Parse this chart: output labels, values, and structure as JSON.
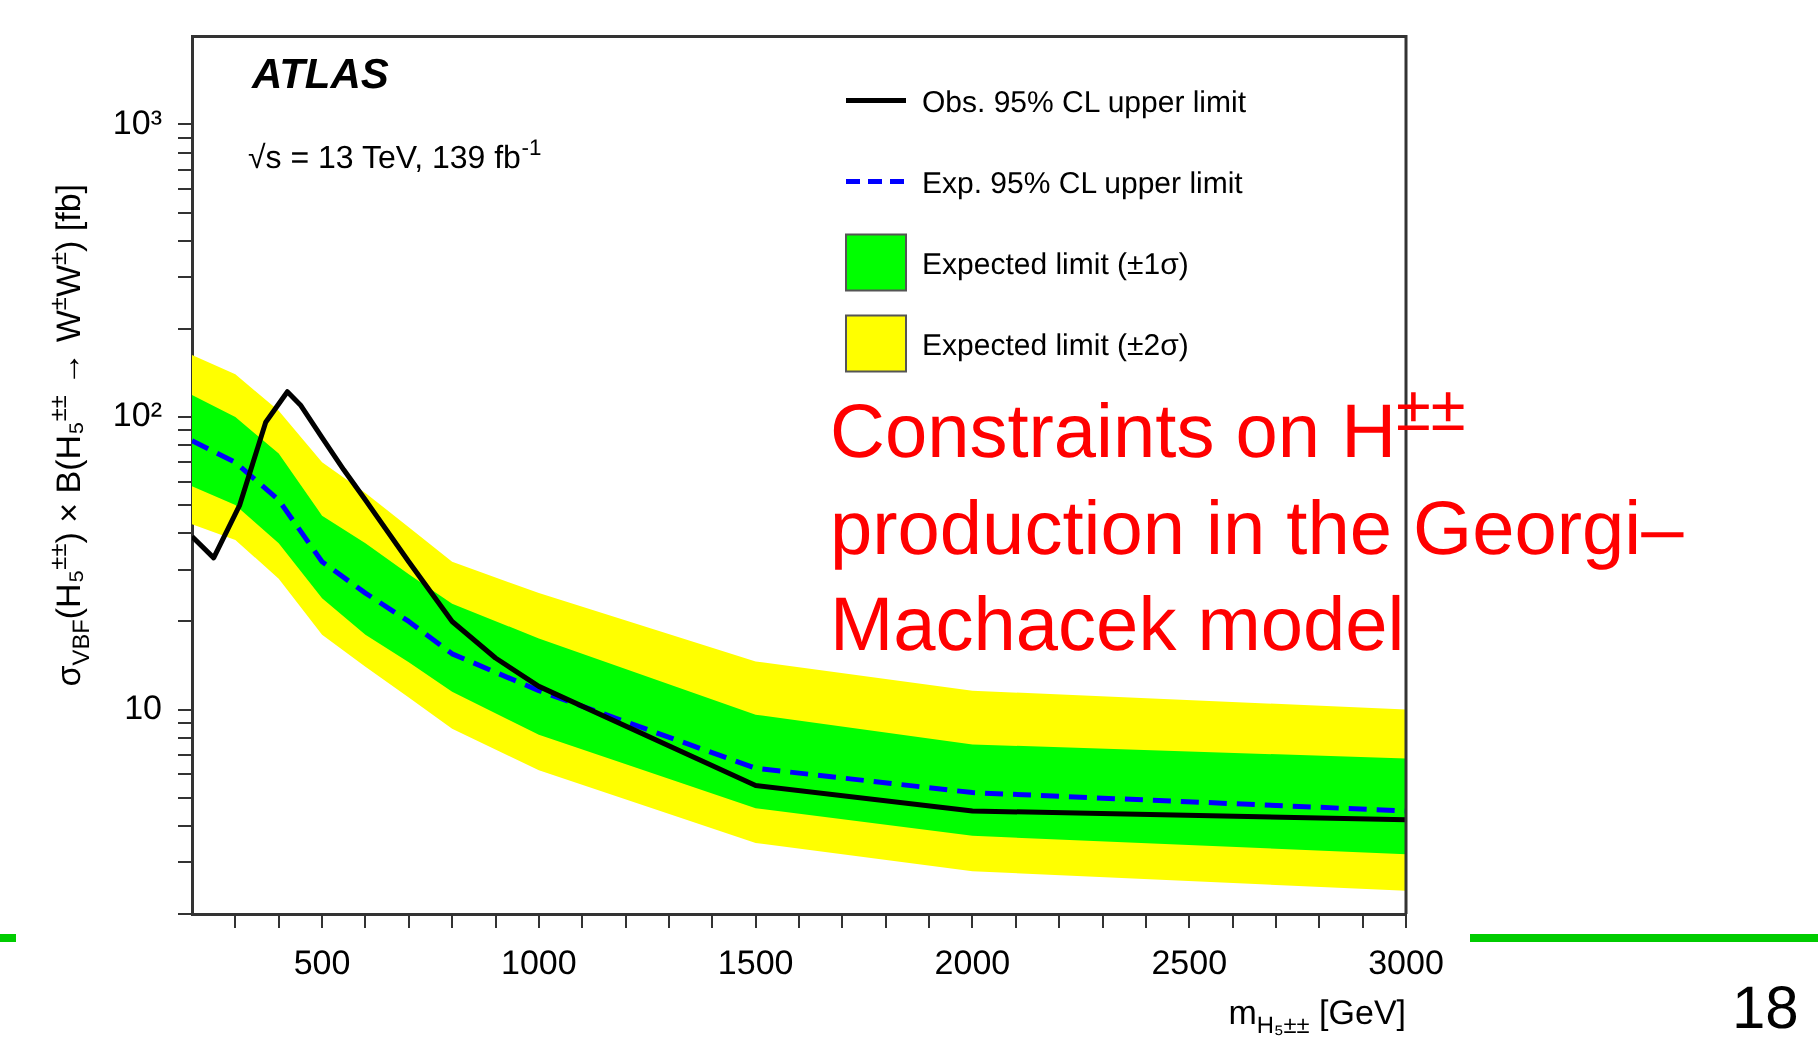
{
  "chart_data": {
    "type": "line",
    "xlabel": "m$_{H₅±±}$ [GeV]",
    "ylabel": "σ$_{VBF}$(H₅$^{±±}$) × B(H₅$^{±±}$ → W$^{±}$W$^{±}$) [fb]",
    "log": "y",
    "grid": false,
    "legend": "top right",
    "marker": "none",
    "xlim": [
      200,
      3000
    ],
    "ylim": [
      2,
      2000
    ],
    "xticks": [
      {
        "value": 300,
        "label": null
      },
      {
        "value": 400,
        "label": null
      },
      500,
      {
        "value": 600,
        "label": null
      },
      {
        "value": 700,
        "label": null
      },
      {
        "value": 800,
        "label": null
      },
      {
        "value": 900,
        "label": null
      },
      1000,
      {
        "value": 1100,
        "label": null
      },
      {
        "value": 1200,
        "label": null
      },
      {
        "value": 1300,
        "label": null
      },
      {
        "value": 1400,
        "label": null
      },
      1500,
      {
        "value": 1600,
        "label": null
      },
      {
        "value": 1700,
        "label": null
      },
      {
        "value": 1800,
        "label": null
      },
      {
        "value": 1900,
        "label": null
      },
      2000,
      {
        "value": 2100,
        "label": null
      },
      {
        "value": 2200,
        "label": null
      },
      {
        "value": 2300,
        "label": null
      },
      {
        "value": 2400,
        "label": null
      },
      2500,
      {
        "value": 2600,
        "label": null
      },
      {
        "value": 2700,
        "label": null
      },
      {
        "value": 2800,
        "label": null
      },
      {
        "value": 2900,
        "label": null
      },
      3000
    ],
    "yticks": [
      {
        "value": 2,
        "label": null
      },
      {
        "value": 3,
        "label": null
      },
      {
        "value": 4,
        "label": null
      },
      {
        "value": 5,
        "label": null
      },
      {
        "value": 6,
        "label": null
      },
      {
        "value": 7,
        "label": null
      },
      {
        "value": 8,
        "label": null
      },
      {
        "value": 9,
        "label": null
      },
      10,
      {
        "value": 20,
        "label": null
      },
      {
        "value": 30,
        "label": null
      },
      {
        "value": 40,
        "label": null
      },
      {
        "value": 50,
        "label": null
      },
      {
        "value": 60,
        "label": null
      },
      {
        "value": 70,
        "label": null
      },
      {
        "value": 80,
        "label": null
      },
      {
        "value": 90,
        "label": null
      },
      {
        "value": 100,
        "label": "10²"
      },
      {
        "value": 200,
        "label": null
      },
      {
        "value": 300,
        "label": null
      },
      {
        "value": 400,
        "label": null
      },
      {
        "value": 500,
        "label": null
      },
      {
        "value": 600,
        "label": null
      },
      {
        "value": 700,
        "label": null
      },
      {
        "value": 800,
        "label": null
      },
      {
        "value": 900,
        "label": null
      },
      {
        "value": 1000,
        "label": "10³"
      }
    ],
    "series": [
      {
        "name": "Obs. 95% CL upper limit",
        "type": "line",
        "color": "#000000",
        "line_style": "solid",
        "x": [
          200,
          250,
          310,
          370,
          420,
          450,
          500,
          550,
          600,
          700,
          800,
          900,
          1000,
          1500,
          2000,
          3000
        ],
        "values": [
          39,
          33,
          50,
          96,
          122,
          110,
          85,
          66,
          52,
          32,
          20,
          15,
          12,
          5.5,
          4.5,
          4.2
        ]
      },
      {
        "name": "Exp. 95% CL upper limit",
        "type": "line",
        "color": "#0000ff",
        "line_style": "dashed",
        "x": [
          200,
          300,
          400,
          500,
          600,
          700,
          800,
          1000,
          1500,
          2000,
          3000
        ],
        "values": [
          83,
          70,
          52,
          32,
          25,
          20,
          15.5,
          11.6,
          6.3,
          5.2,
          4.5
        ]
      },
      {
        "name": "Expected limit (±1σ)",
        "type": "line",
        "color": "#00ff00",
        "x": [
          200,
          300,
          400,
          500,
          600,
          700,
          800,
          1000,
          1500,
          2000,
          3000
        ],
        "values": [
          null,
          null,
          null,
          null,
          null,
          null,
          null,
          null,
          null,
          null,
          null
        ],
        "upper": [
          119,
          100,
          75,
          46,
          37,
          29,
          23,
          17.5,
          9.6,
          7.6,
          6.8
        ],
        "lower": [
          58,
          50,
          37,
          24,
          18,
          14.5,
          11.5,
          8.2,
          4.6,
          3.7,
          3.2
        ]
      },
      {
        "name": "Expected limit (±2σ)",
        "type": "line",
        "color": "#ffff00",
        "x": [
          200,
          300,
          400,
          500,
          600,
          700,
          800,
          1000,
          1500,
          2000,
          3000
        ],
        "values": [
          null,
          null,
          null,
          null,
          null,
          null,
          null,
          null,
          null,
          null,
          null
        ],
        "upper": [
          163,
          140,
          105,
          70,
          55,
          42,
          32,
          25,
          14.6,
          11.6,
          10
        ],
        "lower": [
          43,
          38,
          28,
          18,
          14,
          11,
          8.6,
          6.2,
          3.5,
          2.8,
          2.4
        ]
      }
    ],
    "annotations": [
      "ATLAS",
      "√s = 13 TeV, 139 fb$^{-1}$",
      "Constraints on H$^{±±}$ production in the Georgi–Machacek model",
      "18"
    ]
  }
}
